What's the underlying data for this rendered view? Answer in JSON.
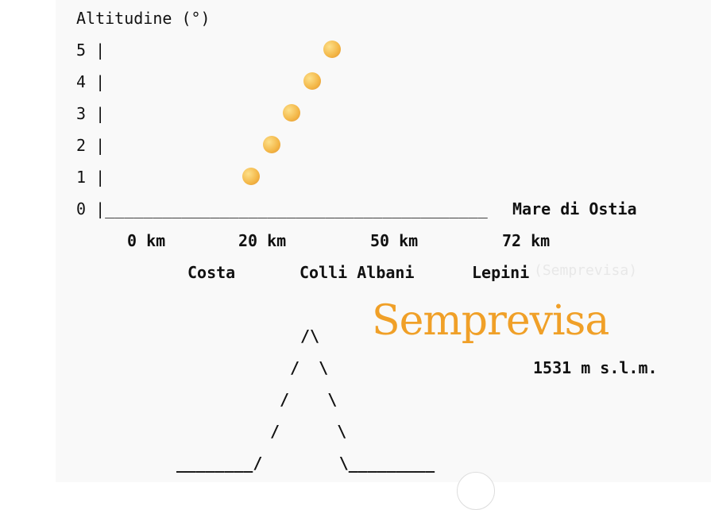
{
  "y_title": "Altitudine (°)",
  "y_rows": [
    "5 |",
    "4 |",
    "3 |",
    "2 |",
    "1 |"
  ],
  "baseline": "0 |________________________________________",
  "baseline_label": "Mare di Ostia",
  "x_ticks": [
    "0 km",
    "20 km",
    "50 km",
    "72 km"
  ],
  "places": [
    "Costa",
    "Colli Albani",
    "Lepini"
  ],
  "ghost_text": "(Semprevisa)",
  "moon_altitudes": [
    1,
    2,
    3,
    4,
    5
  ],
  "mountain": [
    "/\\",
    "/  \\",
    "/    \\",
    "/      \\",
    "________/        \\_________"
  ],
  "peak_name": "Semprevisa",
  "peak_height": "1531 m s.l.m.",
  "colors": {
    "brand": "#f0a028",
    "moon": "#f3b646"
  }
}
